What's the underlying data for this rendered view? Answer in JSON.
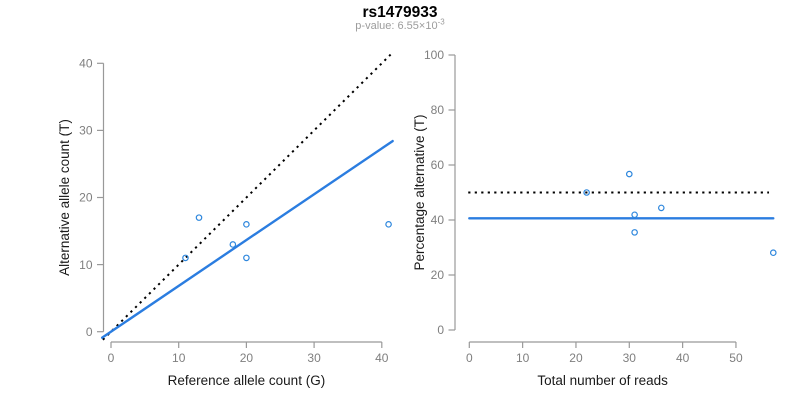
{
  "header": {
    "title": "rs1479933",
    "subtitle_prefix": "p-value: 6.55×10",
    "subtitle_exponent": "-3"
  },
  "colors": {
    "fit_line_blue": "#2b7de0",
    "point_blue": "#2e87dd",
    "identity_black": "#000000",
    "axis_gray": "#999999",
    "tick_label_gray": "#7f7f7f",
    "axis_title": "#1a1a1a",
    "subtitle_gray": "#9c9c9c",
    "title_black": "#000000"
  },
  "chart_data": [
    {
      "id": "allele-counts",
      "type": "scatter",
      "xlabel": "Reference allele count (G)",
      "ylabel": "Alternative allele count (T)",
      "xlim": [
        0,
        41
      ],
      "ylim": [
        0,
        41
      ],
      "xticks": [
        0,
        10,
        20,
        30,
        40
      ],
      "yticks": [
        0,
        10,
        20,
        30,
        40
      ],
      "grid": false,
      "points": [
        [
          11,
          11
        ],
        [
          13,
          17
        ],
        [
          18,
          13
        ],
        [
          20,
          11
        ],
        [
          20,
          16
        ],
        [
          41,
          16
        ]
      ],
      "lines": [
        {
          "name": "identity-diagonal",
          "style": "dotted",
          "color_key": "identity_black",
          "width": 2,
          "from": [
            -1.2,
            -1.2
          ],
          "to": [
            41.3,
            41.3
          ]
        },
        {
          "name": "fitted-slope",
          "style": "solid",
          "color_key": "fit_line_blue",
          "width": 2.4,
          "from": [
            -1.3,
            -0.89
          ],
          "to": [
            41.6,
            28.41
          ]
        }
      ]
    },
    {
      "id": "percentage-reads",
      "type": "scatter",
      "xlabel": "Total number of reads",
      "ylabel": "Percentage alternative (T)",
      "xlim": [
        0,
        57
      ],
      "ylim": [
        0,
        100
      ],
      "xticks": [
        0,
        10,
        20,
        30,
        40,
        50
      ],
      "yticks": [
        0,
        20,
        40,
        60,
        80,
        100
      ],
      "grid": false,
      "points": [
        [
          22,
          50
        ],
        [
          30,
          56.7
        ],
        [
          31,
          41.9
        ],
        [
          31,
          35.5
        ],
        [
          36,
          44.4
        ],
        [
          57,
          28.1
        ]
      ],
      "lines": [
        {
          "name": "fifty-percent-reference",
          "style": "dotted",
          "color_key": "identity_black",
          "width": 2,
          "from": [
            -0.2,
            50
          ],
          "to": [
            56.2,
            50
          ]
        },
        {
          "name": "observed-mean-percentage",
          "style": "solid",
          "color_key": "fit_line_blue",
          "width": 2.4,
          "from": [
            0,
            40.6
          ],
          "to": [
            57,
            40.6
          ]
        }
      ]
    }
  ]
}
